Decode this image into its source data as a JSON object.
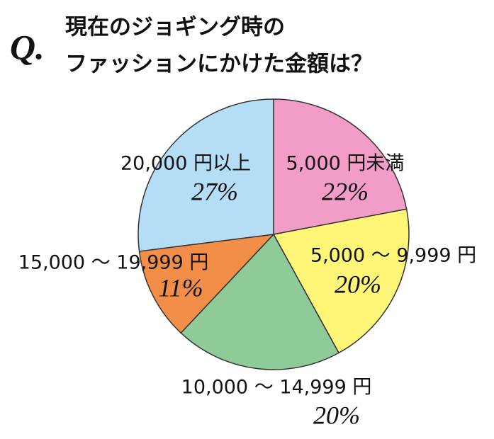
{
  "chart_data": {
    "type": "pie",
    "question_mark": "Q.",
    "title": [
      "現在のジョギング時の",
      "ファッションにかけた金額は？"
    ],
    "categories": [
      "5,000 円未満",
      "5,000 ～ 9,999 円",
      "10,000 ～ 14,999 円",
      "15,000 ～ 19,999 円",
      "20,000 円以上"
    ],
    "values": [
      22,
      20,
      20,
      11,
      27
    ],
    "value_labels": [
      "22%",
      "20%",
      "20%",
      "11%",
      "27%"
    ],
    "colors": [
      "#f29cc8",
      "#fff678",
      "#8fcb98",
      "#f28e47",
      "#b5def6"
    ]
  }
}
